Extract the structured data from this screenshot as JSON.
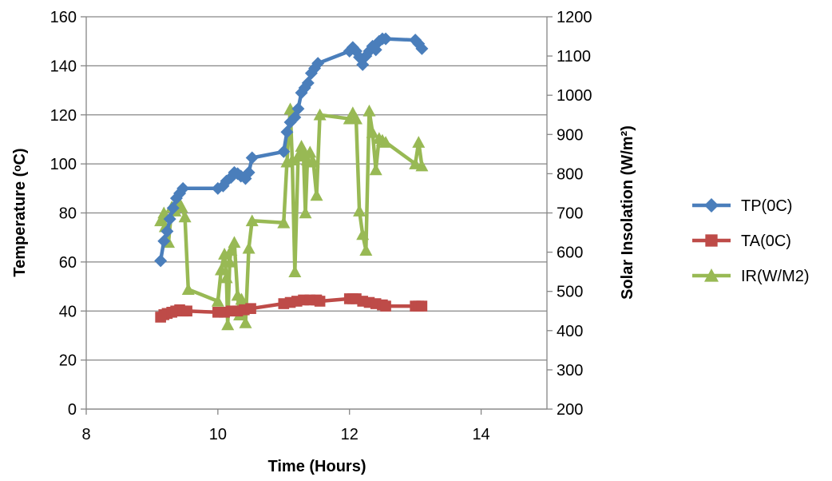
{
  "chart_data": {
    "type": "line",
    "title": "",
    "xlabel": "Time (Hours)",
    "ylabel": "Temperature (ᵒC)",
    "y2label": "Solar Insolation (W/m²)",
    "xlim": [
      8,
      15
    ],
    "ylim": [
      0,
      160
    ],
    "y2lim": [
      200,
      1200
    ],
    "x_ticks": [
      8,
      10,
      12,
      14
    ],
    "y_ticks": [
      0,
      20,
      40,
      60,
      80,
      100,
      120,
      140,
      160
    ],
    "y2_ticks": [
      200,
      300,
      400,
      500,
      600,
      700,
      800,
      900,
      1000,
      1100,
      1200
    ],
    "grid": "horizontal",
    "legend_position": "right",
    "series": [
      {
        "name": "TP(0C)",
        "axis": "left",
        "color": "#4a7ebb",
        "marker": "diamond",
        "x": [
          9.13,
          9.18,
          9.23,
          9.27,
          9.32,
          9.37,
          9.42,
          9.47,
          10.0,
          10.08,
          10.13,
          10.2,
          10.25,
          10.3,
          10.35,
          10.42,
          10.47,
          10.52,
          11.0,
          11.05,
          11.1,
          11.17,
          11.22,
          11.27,
          11.32,
          11.37,
          11.42,
          11.47,
          11.52,
          12.0,
          12.05,
          12.1,
          12.15,
          12.2,
          12.25,
          12.3,
          12.35,
          12.4,
          12.45,
          12.5,
          12.55,
          13.0,
          13.05,
          13.1
        ],
        "y": [
          60.5,
          68.5,
          72.5,
          77.5,
          82,
          86,
          88,
          90,
          90,
          91,
          93,
          94.5,
          96.5,
          96,
          95,
          94,
          96.5,
          102.5,
          105,
          113,
          117,
          119,
          122.5,
          129,
          131,
          133,
          137,
          139,
          141,
          146,
          147.5,
          146,
          143.5,
          140.5,
          144,
          146,
          148,
          146.5,
          150,
          151,
          151,
          150.5,
          149,
          147
        ]
      },
      {
        "name": "TA(0C)",
        "axis": "left",
        "color": "#be4b48",
        "marker": "square",
        "x": [
          9.13,
          9.18,
          9.23,
          9.3,
          9.36,
          9.42,
          9.47,
          9.53,
          10.0,
          10.1,
          10.2,
          10.3,
          10.4,
          10.5,
          11.0,
          11.1,
          11.2,
          11.3,
          11.4,
          11.5,
          11.55,
          12.0,
          12.05,
          12.1,
          12.2,
          12.3,
          12.4,
          12.5,
          12.55,
          13.0,
          13.05,
          13.1
        ],
        "y": [
          37.5,
          38.5,
          39,
          39.5,
          40,
          40.5,
          40,
          40,
          39.5,
          39.5,
          40,
          40,
          40.5,
          41,
          43,
          43.5,
          44,
          44.5,
          44.5,
          44.5,
          44,
          45,
          45,
          45,
          44,
          43.5,
          43,
          42.5,
          42,
          42,
          42,
          42
        ]
      },
      {
        "name": "IR(W/M2)",
        "axis": "right",
        "color": "#98b954",
        "marker": "triangle",
        "x": [
          9.13,
          9.18,
          9.2,
          9.25,
          9.3,
          9.35,
          9.4,
          9.45,
          9.5,
          9.55,
          10.0,
          10.05,
          10.1,
          10.13,
          10.15,
          10.18,
          10.2,
          10.25,
          10.3,
          10.33,
          10.36,
          10.42,
          10.47,
          10.52,
          11.0,
          11.05,
          11.1,
          11.13,
          11.17,
          11.22,
          11.27,
          11.3,
          11.33,
          11.36,
          11.4,
          11.45,
          11.5,
          11.55,
          12.0,
          12.05,
          12.1,
          12.15,
          12.2,
          12.25,
          12.3,
          12.35,
          12.4,
          12.45,
          12.5,
          12.55,
          13.0,
          13.05,
          13.1
        ],
        "y": [
          680,
          700,
          665,
          625,
          715,
          705,
          730,
          715,
          690,
          505,
          475,
          555,
          595,
          535,
          415,
          575,
          605,
          625,
          490,
          440,
          480,
          420,
          610,
          680,
          675,
          830,
          965,
          835,
          550,
          845,
          870,
          855,
          700,
          835,
          855,
          830,
          745,
          950,
          940,
          955,
          940,
          705,
          645,
          605,
          960,
          905,
          810,
          890,
          885,
          880,
          825,
          880,
          820
        ]
      }
    ]
  }
}
